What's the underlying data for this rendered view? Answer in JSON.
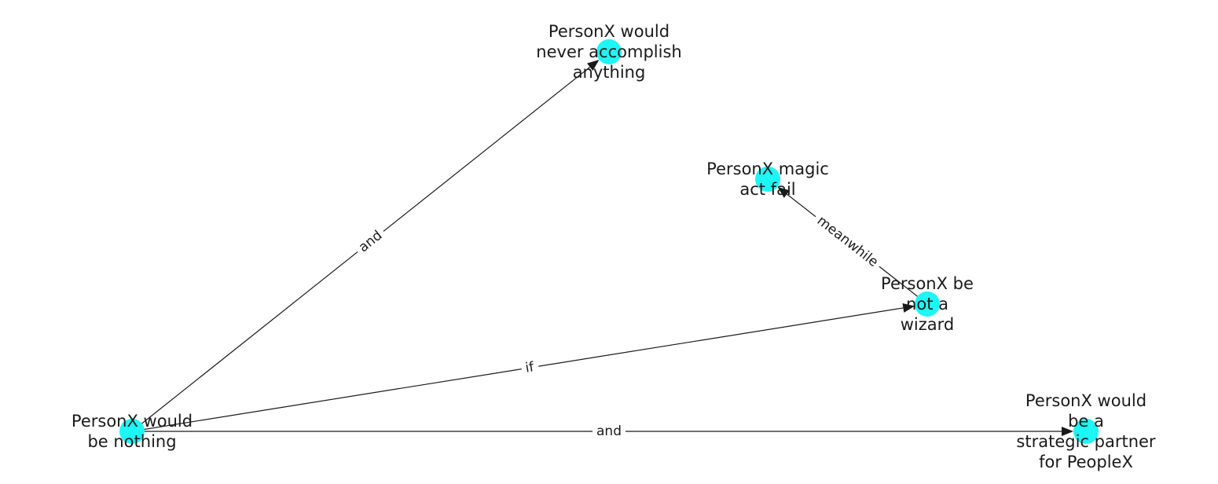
{
  "graph": {
    "nodes": [
      {
        "id": "n_nothing",
        "lines": [
          "PersonX would",
          "be nothing"
        ]
      },
      {
        "id": "n_accomplish",
        "lines": [
          "PersonX would",
          "never accomplish",
          "anything"
        ]
      },
      {
        "id": "n_magic",
        "lines": [
          "PersonX magic",
          "act fail"
        ]
      },
      {
        "id": "n_wizard",
        "lines": [
          "PersonX be",
          "not a",
          "wizard"
        ]
      },
      {
        "id": "n_partner",
        "lines": [
          "PersonX would",
          "be a",
          "strategic partner",
          "for PeopleX"
        ]
      }
    ],
    "edges": [
      {
        "from": "n_nothing",
        "to": "n_accomplish",
        "label": "and"
      },
      {
        "from": "n_nothing",
        "to": "n_wizard",
        "label": "if"
      },
      {
        "from": "n_nothing",
        "to": "n_partner",
        "label": "and"
      },
      {
        "from": "n_wizard",
        "to": "n_magic",
        "label": "meanwhile"
      }
    ],
    "colors": {
      "node": "#1ef5f5",
      "edge": "#1a1a1a",
      "label_background": "#ffffff"
    }
  }
}
